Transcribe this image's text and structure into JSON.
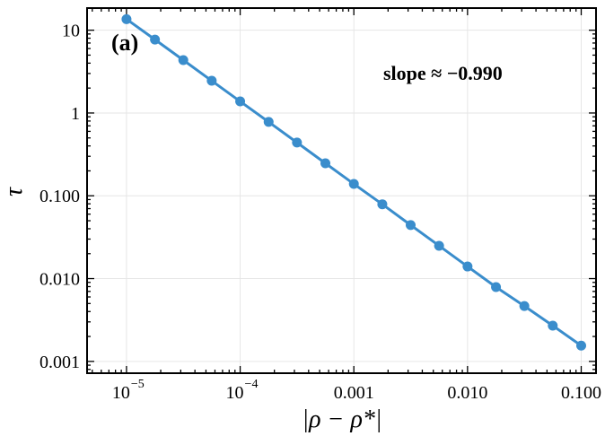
{
  "chart_data": {
    "type": "line",
    "xscale": "log",
    "yscale": "log",
    "xlim": [
      4.5e-06,
      0.135
    ],
    "ylim": [
      0.00072,
      18.5
    ],
    "grid": true,
    "xlabel": "|ρ − ρ*|",
    "ylabel": "τ",
    "panel_label": "(a)",
    "annotation": "slope ≈ −0.990",
    "line_color": "#3a8dcc",
    "x_ticks": [
      {
        "value": 1e-05,
        "label": "10",
        "exp": "−5"
      },
      {
        "value": 0.0001,
        "label": "10",
        "exp": "−4"
      },
      {
        "value": 0.001,
        "label": "0.001",
        "exp": ""
      },
      {
        "value": 0.01,
        "label": "0.010",
        "exp": ""
      },
      {
        "value": 0.1,
        "label": "0.100",
        "exp": ""
      }
    ],
    "y_ticks": [
      {
        "value": 10,
        "label": "10"
      },
      {
        "value": 1,
        "label": "1"
      },
      {
        "value": 0.1,
        "label": "0.100"
      },
      {
        "value": 0.01,
        "label": "0.010"
      },
      {
        "value": 0.001,
        "label": "0.001"
      }
    ],
    "series": [
      {
        "x": [
          1e-05,
          1.78e-05,
          3.16e-05,
          5.62e-05,
          0.0001,
          0.000178,
          0.000316,
          0.000562,
          0.001,
          0.00178,
          0.00316,
          0.00562,
          0.01,
          0.0178,
          0.0316,
          0.0562,
          0.1
        ],
        "y": [
          13.6,
          7.7,
          4.35,
          2.45,
          1.38,
          0.78,
          0.44,
          0.247,
          0.139,
          0.079,
          0.0443,
          0.0249,
          0.014,
          0.0079,
          0.00466,
          0.0027,
          0.00155
        ]
      }
    ]
  }
}
